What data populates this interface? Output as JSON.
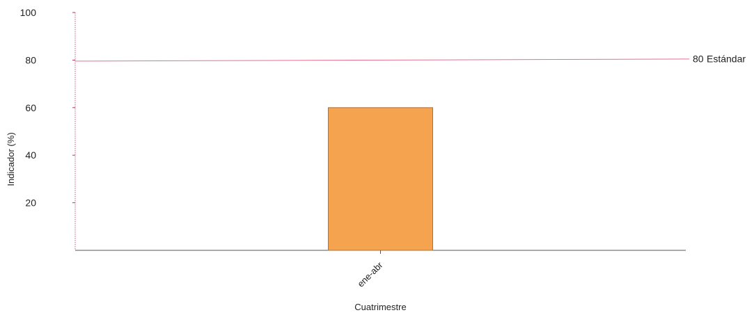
{
  "chart_data": {
    "type": "bar",
    "categories": [
      "ene-abr"
    ],
    "values": [
      60
    ],
    "xlabel": "Cuatrimestre",
    "ylabel": "Indicador (%)",
    "ylim": [
      0,
      100
    ],
    "yticks": [
      20,
      40,
      60,
      80,
      100
    ],
    "bar_color": "#f5a34f",
    "bar_edge_color": "#b0703a",
    "reference_line": {
      "value": 80,
      "value_label": "80",
      "label": "Estándar",
      "color": "#e57090"
    },
    "axis_color": "#c03060",
    "grid": false
  }
}
